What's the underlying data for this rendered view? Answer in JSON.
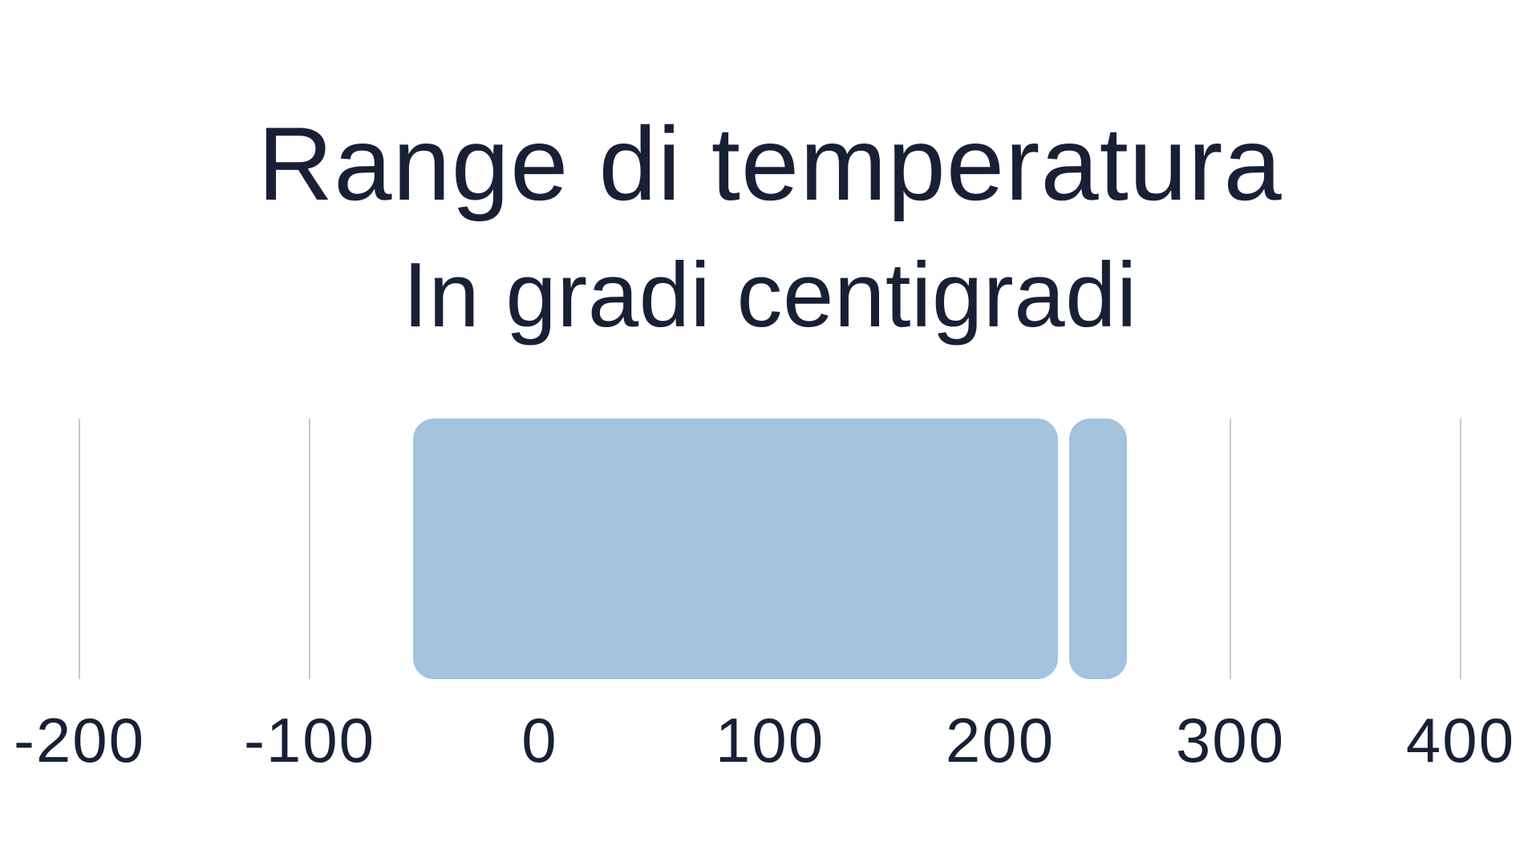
{
  "chart_data": {
    "type": "bar",
    "variant": "horizontal-range-bar",
    "title": "Range di temperatura",
    "subtitle": "In gradi centigradi",
    "xlabel": "",
    "ylabel": "",
    "xlim": [
      -200,
      400
    ],
    "x_ticks": [
      -200,
      -100,
      0,
      100,
      200,
      300,
      400
    ],
    "x_tick_labels": [
      "-200",
      "-100",
      "0",
      "100",
      "200",
      "300",
      "400"
    ],
    "grid": "vertical-gridlines-on",
    "legend": "none",
    "segments": [
      {
        "name": "range-main",
        "from": -55,
        "to": 225
      },
      {
        "name": "range-high",
        "from": 230,
        "to": 255
      }
    ],
    "colors": {
      "bar": "#a3c3df",
      "text": "#182035",
      "gridline": "#c9c9c9",
      "background": "#ffffff"
    }
  }
}
